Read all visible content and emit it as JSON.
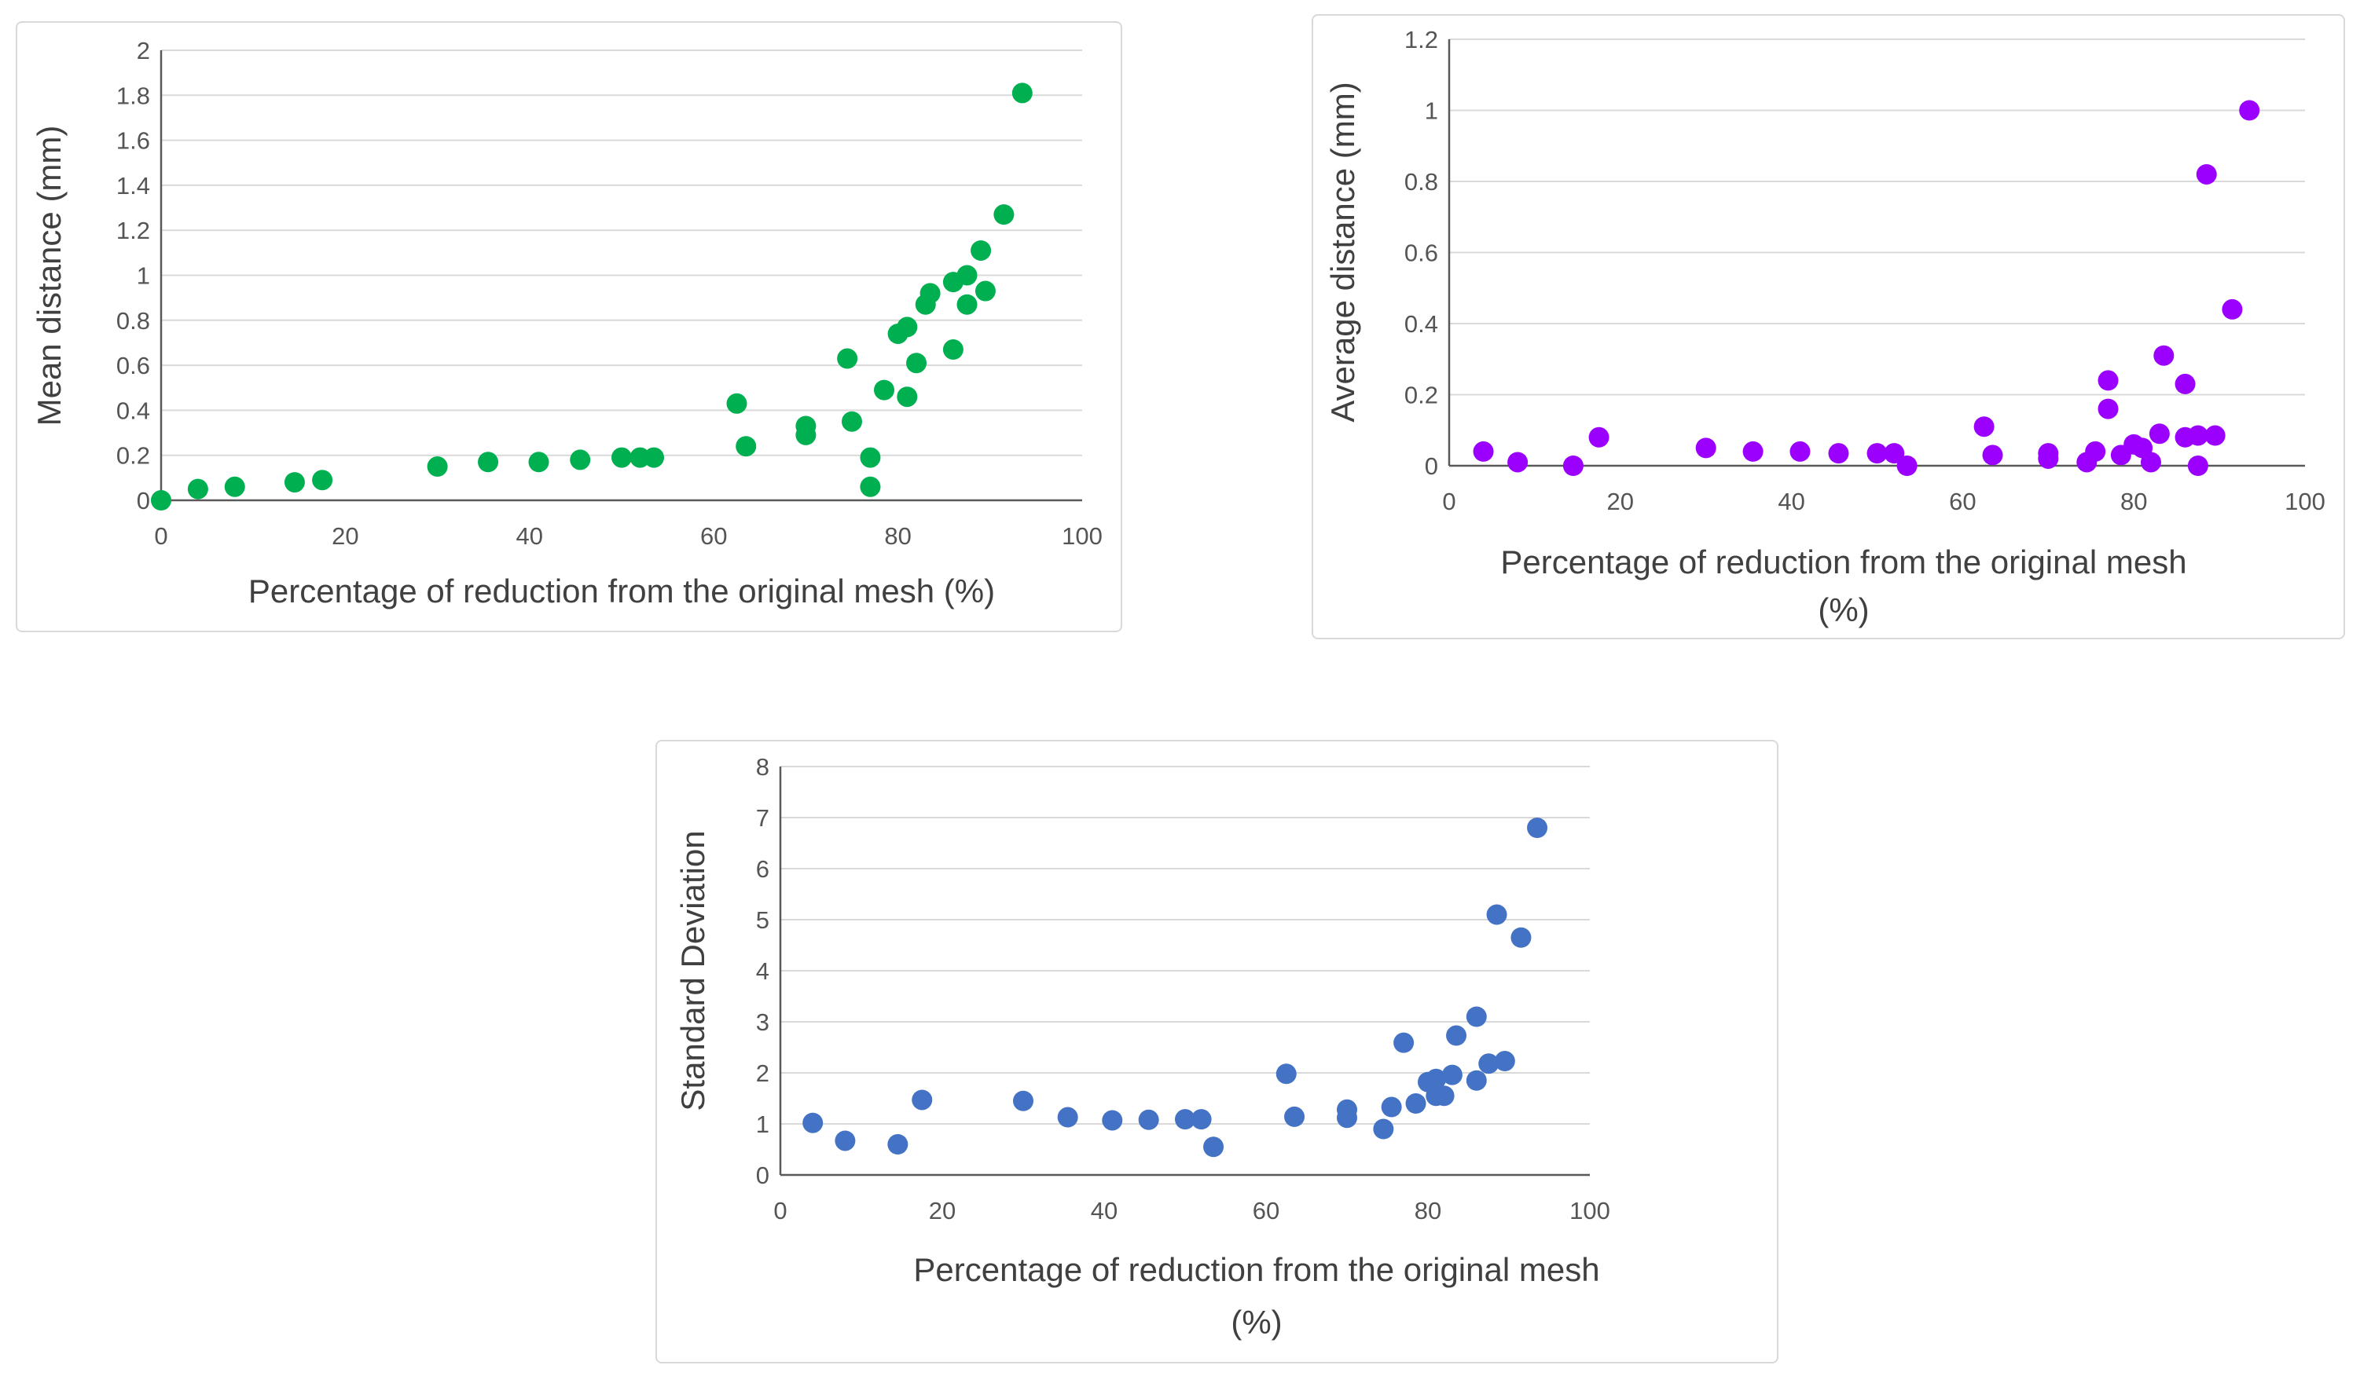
{
  "chart_data": [
    {
      "type": "scatter",
      "color": "#00b050",
      "xlabel": "Percentage of reduction from the original mesh (%)",
      "ylabel": "Mean distance (mm)",
      "xlim": [
        0,
        100
      ],
      "ylim": [
        0,
        2
      ],
      "xticks": [
        "0",
        "20",
        "40",
        "60",
        "80",
        "100"
      ],
      "yticks": [
        "0",
        "0.2",
        "0.4",
        "0.6",
        "0.8",
        "1",
        "1.2",
        "1.4",
        "1.6",
        "1.8",
        "2"
      ],
      "grid": "horizontal",
      "x": [
        0,
        4,
        8,
        14.5,
        17.5,
        30,
        35.5,
        41,
        45.5,
        50,
        52,
        53.5,
        62.5,
        63.5,
        70,
        70,
        74.5,
        75,
        77,
        77,
        78.5,
        80,
        81,
        81,
        82,
        83,
        83.5,
        86,
        86,
        87.5,
        87.5,
        89,
        89.5,
        91.5,
        93.5
      ],
      "y": [
        0,
        0.05,
        0.06,
        0.08,
        0.09,
        0.15,
        0.17,
        0.17,
        0.18,
        0.19,
        0.19,
        0.19,
        0.43,
        0.24,
        0.33,
        0.29,
        0.63,
        0.35,
        0.19,
        0.06,
        0.49,
        0.74,
        0.77,
        0.46,
        0.61,
        0.87,
        0.92,
        0.97,
        0.67,
        1.0,
        0.87,
        1.11,
        0.93,
        1.27,
        1.81
      ]
    },
    {
      "type": "scatter",
      "color": "#9b00ff",
      "xlabel": "Percentage of reduction from the original mesh (%)",
      "ylabel": "Average distance (mm)",
      "xlim": [
        0,
        100
      ],
      "ylim": [
        0,
        1.2
      ],
      "xticks": [
        "0",
        "20",
        "40",
        "60",
        "80",
        "100"
      ],
      "yticks": [
        "0",
        "0.2",
        "0.4",
        "0.6",
        "0.8",
        "1",
        "1.2"
      ],
      "grid": "horizontal",
      "x": [
        4,
        8,
        14.5,
        17.5,
        30,
        35.5,
        41,
        45.5,
        50,
        52,
        53.5,
        62.5,
        63.5,
        70,
        70,
        74.5,
        75.5,
        77,
        77,
        78.5,
        80,
        81,
        82,
        83,
        83.5,
        86,
        86,
        87.5,
        87.5,
        88.5,
        89.5,
        91.5,
        93.5
      ],
      "y": [
        0.04,
        0.01,
        0.0,
        0.08,
        0.05,
        0.04,
        0.04,
        0.035,
        0.035,
        0.035,
        0.0,
        0.11,
        0.03,
        0.035,
        0.02,
        0.01,
        0.04,
        0.24,
        0.16,
        0.03,
        0.06,
        0.05,
        0.01,
        0.09,
        0.31,
        0.23,
        0.08,
        0.085,
        0.0,
        0.82,
        0.085,
        0.44,
        1.0
      ]
    },
    {
      "type": "scatter",
      "color": "#4472c4",
      "xlabel": "Percentage of reduction from the original mesh (%)",
      "ylabel": "Standard Deviation",
      "xlim": [
        0,
        100
      ],
      "ylim": [
        0,
        8
      ],
      "xticks": [
        "0",
        "20",
        "40",
        "60",
        "80",
        "100"
      ],
      "yticks": [
        "0",
        "1",
        "2",
        "3",
        "4",
        "5",
        "6",
        "7",
        "8"
      ],
      "grid": "horizontal",
      "x": [
        4,
        8,
        14.5,
        17.5,
        30,
        35.5,
        41,
        45.5,
        50,
        52,
        53.5,
        62.5,
        63.5,
        70,
        70,
        74.5,
        75.5,
        77,
        78.5,
        80,
        81,
        81,
        82,
        83,
        83.5,
        86,
        86,
        87.5,
        88.5,
        89.5,
        91.5,
        93.5
      ],
      "y": [
        1.02,
        0.67,
        0.6,
        1.47,
        1.45,
        1.13,
        1.07,
        1.08,
        1.09,
        1.09,
        0.55,
        1.98,
        1.14,
        1.28,
        1.12,
        0.9,
        1.33,
        2.59,
        1.4,
        1.82,
        1.55,
        1.88,
        1.55,
        1.96,
        2.73,
        3.1,
        1.85,
        2.18,
        5.1,
        2.23,
        4.65,
        6.8
      ]
    }
  ],
  "panels": [
    {
      "ylabel": "Mean distance (mm)",
      "xlabel_lines": [
        "Percentage of reduction from the original mesh (%)"
      ]
    },
    {
      "ylabel": "Average distance (mm)",
      "xlabel_lines": [
        "Percentage of reduction from the original mesh",
        "(%)"
      ]
    },
    {
      "ylabel": "Standard Deviation",
      "xlabel_lines": [
        "Percentage of reduction from the original mesh",
        "(%)"
      ]
    }
  ]
}
